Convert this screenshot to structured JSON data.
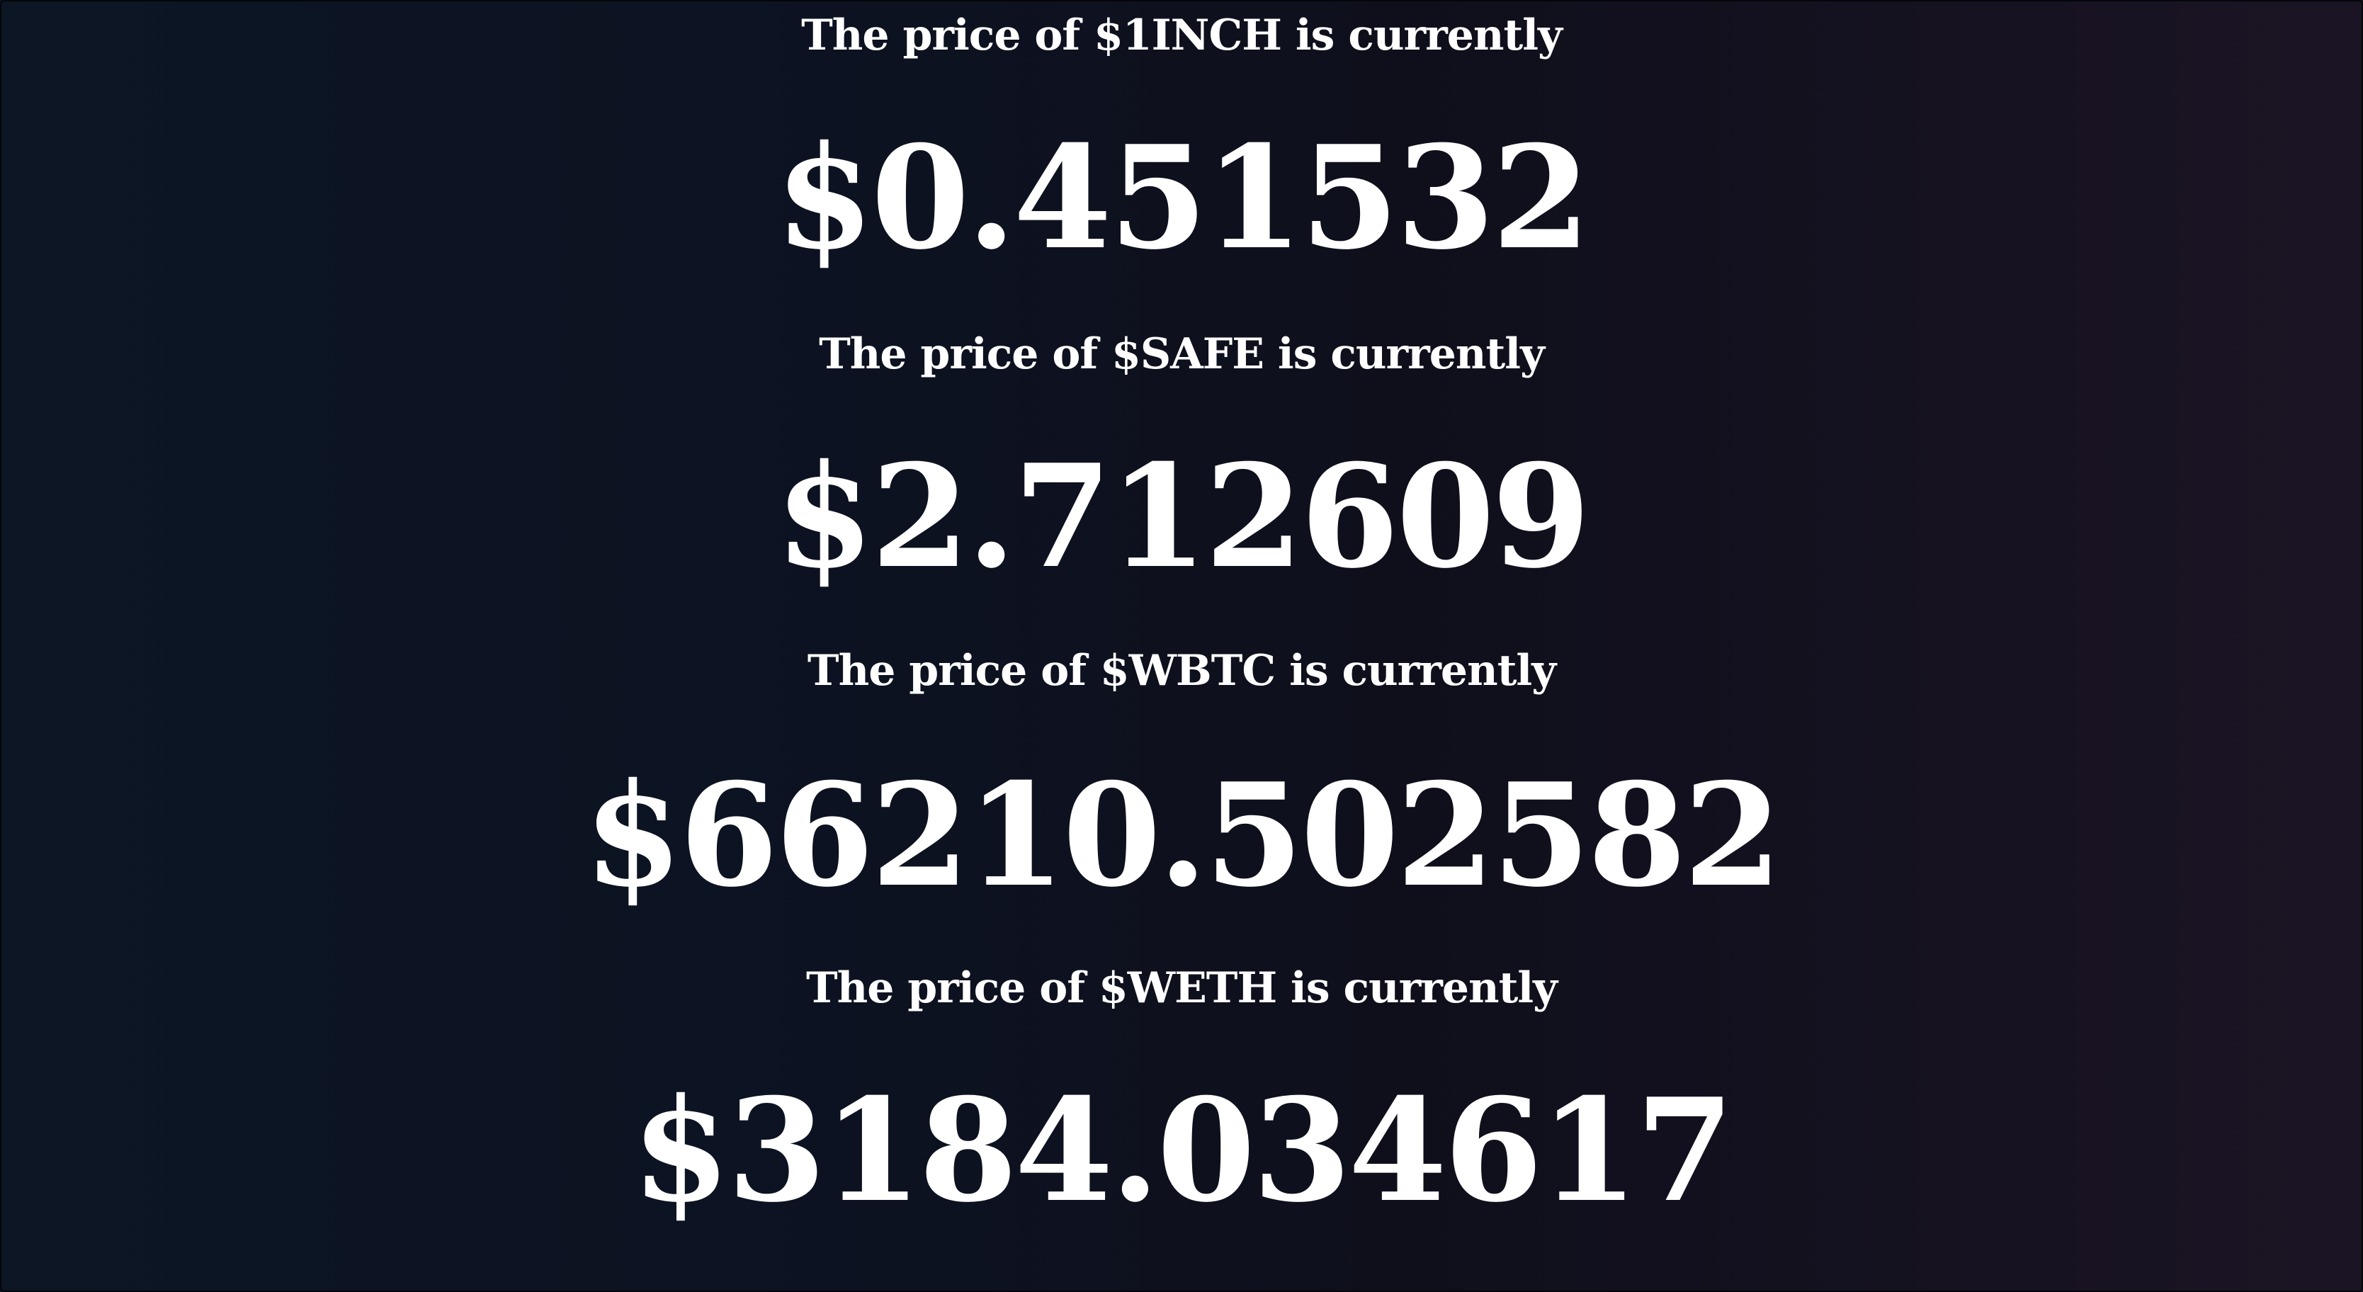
{
  "tickers": [
    {
      "label": "The price of $1INCH is currently",
      "price": "$0.451532"
    },
    {
      "label": "The price of $SAFE is currently",
      "price": "$2.712609"
    },
    {
      "label": "The price of $WBTC is currently",
      "price": "$66210.502582"
    },
    {
      "label": "The price of $WETH is currently",
      "price": "$3184.034617"
    }
  ]
}
